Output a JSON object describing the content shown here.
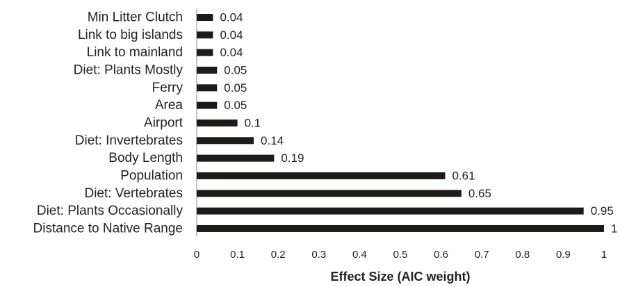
{
  "chart_data": {
    "type": "bar",
    "orientation": "horizontal",
    "categories": [
      "Min Litter Clutch",
      "Link to big islands",
      "Link to mainland",
      "Diet: Plants Mostly",
      "Ferry",
      "Area",
      "Airport",
      "Diet: Invertebrates",
      "Body Length",
      "Population",
      "Diet: Vertebrates",
      "Diet: Plants Occasionally",
      "Distance to Native Range"
    ],
    "values": [
      0.04,
      0.04,
      0.04,
      0.05,
      0.05,
      0.05,
      0.1,
      0.14,
      0.19,
      0.61,
      0.65,
      0.95,
      1
    ],
    "value_labels": [
      "0.04",
      "0.04",
      "0.04",
      "0.05",
      "0.05",
      "0.05",
      "0.1",
      "0.14",
      "0.19",
      "0.61",
      "0.65",
      "0.95",
      "1"
    ],
    "xlabel": "Effect Size (AIC weight)",
    "xlim": [
      0,
      1
    ],
    "xticks": [
      "0",
      "0.1",
      "0.2",
      "0.3",
      "0.4",
      "0.5",
      "0.6",
      "0.7",
      "0.8",
      "0.9",
      "1"
    ],
    "bar_color": "#1f1a1a",
    "grid": false,
    "legend": "none"
  }
}
